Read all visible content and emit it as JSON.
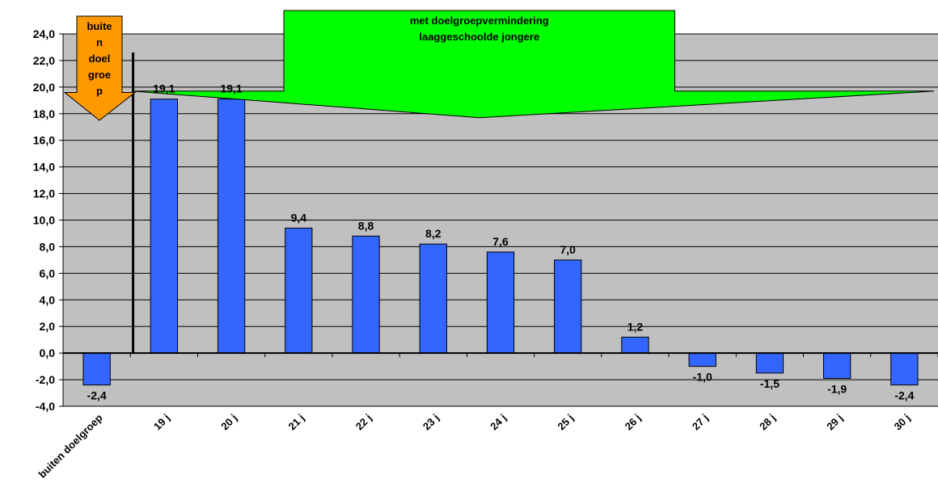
{
  "chart_data": {
    "type": "bar",
    "categories": [
      "buiten doelgroep",
      "19 j",
      "20 j",
      "21 j",
      "22 j",
      "23 j",
      "24 j",
      "25 j",
      "26 j",
      "27 j",
      "28 j",
      "29 j",
      "30 j"
    ],
    "values": [
      -2.4,
      19.1,
      19.1,
      9.4,
      8.8,
      8.2,
      7.6,
      7.0,
      1.2,
      -1.0,
      -1.5,
      -1.9,
      -2.4
    ],
    "data_labels": [
      "-2,4",
      "19,1",
      "19,1",
      "9,4",
      "8,8",
      "8,2",
      "7,6",
      "7,0",
      "1,2",
      "-1,0",
      "-1,5",
      "-1,9",
      "-2,4"
    ],
    "ylim": [
      -4,
      24
    ],
    "yticks": [
      -4,
      -2,
      0,
      2,
      4,
      6,
      8,
      10,
      12,
      14,
      16,
      18,
      20,
      22,
      24
    ],
    "ytick_labels": [
      "-4,0",
      "-2,0",
      "0,0",
      "2,0",
      "4,0",
      "6,0",
      "8,0",
      "10,0",
      "12,0",
      "14,0",
      "16,0",
      "18,0",
      "20,0",
      "22,0",
      "24,0"
    ],
    "grid": true,
    "plot_background": "#c0c0c0",
    "bar_color": "#3366ff",
    "title": "",
    "xlabel": "",
    "ylabel": "",
    "annotations": {
      "orange_arrow": {
        "lines": [
          "buite",
          "n",
          "doel",
          "groe",
          "p"
        ],
        "color": "#ff9900"
      },
      "green_arrow": {
        "lines": [
          "met doelgroepvermindering",
          "laaggeschoolde jongere"
        ],
        "color": "#00ff00"
      }
    }
  }
}
